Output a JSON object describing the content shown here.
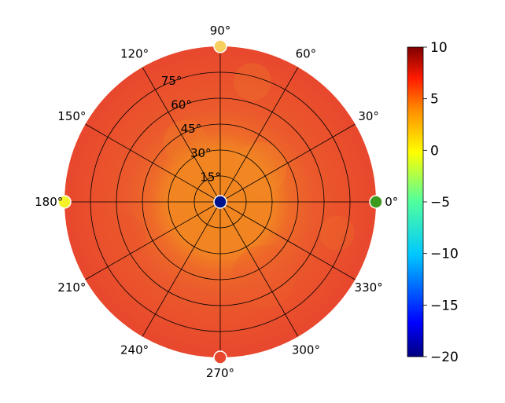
{
  "chart_data": {
    "type": "heatmap",
    "projection": "polar",
    "title": "",
    "angular_ticks": [
      "0°",
      "30°",
      "60°",
      "90°",
      "120°",
      "150°",
      "180°",
      "210°",
      "240°",
      "270°",
      "300°",
      "330°"
    ],
    "angular_tick_values_deg": [
      0,
      30,
      60,
      90,
      120,
      150,
      180,
      210,
      240,
      270,
      300,
      330
    ],
    "radial_ticks": [
      "15°",
      "30°",
      "45°",
      "60°",
      "75°"
    ],
    "radial_tick_values": [
      15,
      30,
      45,
      60,
      75
    ],
    "radial_range": [
      0,
      90
    ],
    "grid": true,
    "colormap": "jet",
    "colorbar": {
      "range": [
        -20,
        10
      ],
      "ticks": [
        "10",
        "5",
        "0",
        "−5",
        "−10",
        "−15",
        "−20"
      ],
      "tick_values": [
        10,
        5,
        0,
        -5,
        -10,
        -15,
        -20
      ]
    },
    "field": {
      "description_values": "approximate value of the mapped quantity vs polar angle (deg) and radius (deg)",
      "background_value": 7.5,
      "center_region": {
        "radius_deg_max": 30,
        "value": 5.5
      },
      "outer_value": 7.5
    },
    "markers": [
      {
        "name": "center",
        "angle_deg": 0,
        "radius_deg": 0,
        "value": -20,
        "color": "#00148c"
      },
      {
        "name": "east",
        "angle_deg": 0,
        "radius_deg": 90,
        "value": -2,
        "color": "#3c9a1e"
      },
      {
        "name": "north",
        "angle_deg": 90,
        "radius_deg": 90,
        "value": 3,
        "color": "#f7d060"
      },
      {
        "name": "west",
        "angle_deg": 180,
        "radius_deg": 90,
        "value": 1,
        "color": "#f5f22a"
      },
      {
        "name": "south",
        "angle_deg": 270,
        "radius_deg": 90,
        "value": 8,
        "color": "#e8482d"
      }
    ]
  }
}
